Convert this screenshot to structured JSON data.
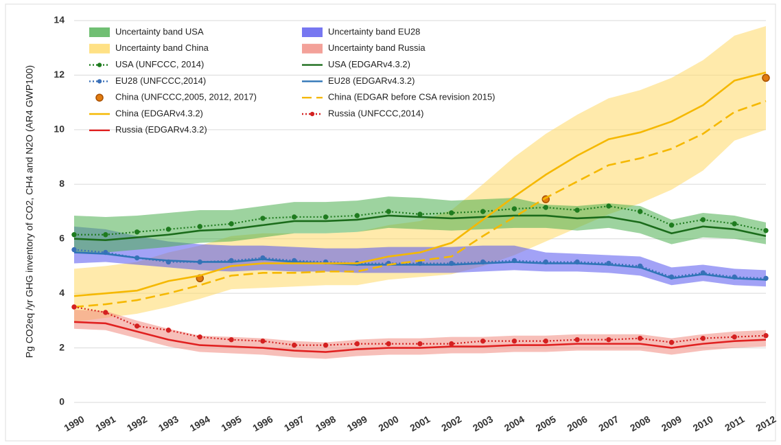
{
  "chart_data": {
    "type": "line",
    "y_label": "Pg CO2eq /yr GHG inventory of CO2, CH4 and N2O (AR4 GWP100)",
    "categories": [
      "1990",
      "1991",
      "1992",
      "1993",
      "1994",
      "1995",
      "1996",
      "1997",
      "1998",
      "1999",
      "2000",
      "2001",
      "2002",
      "2003",
      "2004",
      "2005",
      "2006",
      "2007",
      "2008",
      "2009",
      "2010",
      "2011",
      "2012"
    ],
    "ylim": [
      0,
      14
    ],
    "yticks": [
      0,
      2,
      4,
      6,
      8,
      10,
      12,
      14
    ],
    "grid": true,
    "legend": "top-left",
    "series": [
      {
        "name": "Uncertainty band USA",
        "kind": "band",
        "color": "#4caf50",
        "upper": [
          6.85,
          6.8,
          6.85,
          6.95,
          7.05,
          7.05,
          7.2,
          7.35,
          7.35,
          7.4,
          7.55,
          7.5,
          7.4,
          7.45,
          7.5,
          7.25,
          7.2,
          7.3,
          7.2,
          6.7,
          6.95,
          6.85,
          6.6
        ],
        "lower": [
          5.5,
          5.5,
          5.6,
          5.7,
          5.85,
          5.9,
          6.05,
          6.2,
          6.2,
          6.25,
          6.4,
          6.35,
          6.3,
          6.35,
          6.4,
          6.4,
          6.3,
          6.4,
          6.2,
          5.8,
          6.05,
          6.0,
          5.8
        ]
      },
      {
        "name": "Uncertainty band EU28",
        "kind": "band",
        "color": "#5555ee",
        "upper": [
          6.45,
          6.35,
          6.1,
          5.9,
          5.8,
          5.75,
          5.75,
          5.7,
          5.65,
          5.65,
          5.7,
          5.7,
          5.7,
          5.75,
          5.75,
          5.5,
          5.45,
          5.4,
          5.35,
          4.95,
          5.05,
          4.9,
          4.85
        ],
        "lower": [
          5.1,
          5.15,
          5.05,
          4.95,
          4.85,
          4.8,
          4.85,
          4.8,
          4.8,
          4.75,
          4.75,
          4.75,
          4.75,
          4.8,
          4.85,
          4.8,
          4.8,
          4.75,
          4.65,
          4.3,
          4.45,
          4.3,
          4.25
        ]
      },
      {
        "name": "Uncertainty band China",
        "kind": "band",
        "color": "#ffd966",
        "upper": [
          4.9,
          5.0,
          5.15,
          5.5,
          5.75,
          6.1,
          6.2,
          6.2,
          6.2,
          6.25,
          6.5,
          6.65,
          7.05,
          8.0,
          9.0,
          9.85,
          10.55,
          11.15,
          11.45,
          11.9,
          12.55,
          13.45,
          13.8
        ],
        "lower": [
          2.95,
          3.1,
          3.25,
          3.5,
          3.8,
          4.15,
          4.2,
          4.25,
          4.3,
          4.3,
          4.5,
          4.6,
          4.7,
          5.0,
          5.4,
          5.9,
          6.4,
          6.9,
          7.3,
          7.8,
          8.5,
          9.6,
          10.0
        ]
      },
      {
        "name": "Uncertainty band Russia",
        "kind": "band",
        "color": "#f08a80",
        "upper": [
          3.4,
          3.35,
          3.0,
          2.7,
          2.45,
          2.4,
          2.35,
          2.25,
          2.2,
          2.3,
          2.35,
          2.35,
          2.4,
          2.4,
          2.45,
          2.45,
          2.5,
          2.5,
          2.5,
          2.35,
          2.5,
          2.6,
          2.65
        ],
        "lower": [
          2.7,
          2.65,
          2.35,
          2.05,
          1.85,
          1.8,
          1.75,
          1.65,
          1.6,
          1.7,
          1.75,
          1.75,
          1.8,
          1.8,
          1.85,
          1.85,
          1.9,
          1.9,
          1.9,
          1.75,
          1.9,
          2.0,
          2.05
        ]
      },
      {
        "name": "USA (UNFCCC, 2014)",
        "kind": "line",
        "style": "dotted",
        "marker": true,
        "color": "#1e7b1e",
        "values": [
          6.15,
          6.15,
          6.25,
          6.35,
          6.45,
          6.55,
          6.75,
          6.8,
          6.8,
          6.85,
          7.0,
          6.9,
          6.95,
          7.0,
          7.1,
          7.15,
          7.05,
          7.2,
          7.0,
          6.5,
          6.7,
          6.55,
          6.3
        ]
      },
      {
        "name": "USA (EDGARv4.3.2)",
        "kind": "line",
        "style": "solid",
        "marker": false,
        "color": "#1a6b1a",
        "values": [
          6.0,
          5.95,
          6.05,
          6.15,
          6.3,
          6.35,
          6.5,
          6.65,
          6.65,
          6.7,
          6.85,
          6.8,
          6.75,
          6.8,
          6.85,
          6.85,
          6.75,
          6.8,
          6.6,
          6.2,
          6.45,
          6.35,
          6.1
        ]
      },
      {
        "name": "EU28 (UNFCCC,2014)",
        "kind": "line",
        "style": "dotted",
        "marker": true,
        "color": "#3a70b8",
        "values": [
          5.6,
          5.5,
          5.3,
          5.15,
          5.15,
          5.2,
          5.3,
          5.2,
          5.15,
          5.1,
          5.1,
          5.1,
          5.1,
          5.15,
          5.2,
          5.15,
          5.15,
          5.1,
          5.0,
          4.6,
          4.75,
          4.6,
          4.55
        ]
      },
      {
        "name": "EU28 (EDGARv4.3.2)",
        "kind": "line",
        "style": "solid",
        "marker": false,
        "color": "#2e75b6",
        "values": [
          5.5,
          5.45,
          5.3,
          5.2,
          5.15,
          5.15,
          5.25,
          5.15,
          5.1,
          5.05,
          5.05,
          5.05,
          5.05,
          5.1,
          5.15,
          5.1,
          5.1,
          5.05,
          4.95,
          4.55,
          4.7,
          4.55,
          4.5
        ]
      },
      {
        "name": "China (UNFCCC,2005, 2012, 2017)",
        "kind": "points",
        "color": "#e07b10",
        "values": [
          null,
          null,
          null,
          null,
          4.55,
          null,
          null,
          null,
          null,
          null,
          null,
          null,
          null,
          null,
          null,
          7.45,
          null,
          null,
          null,
          null,
          null,
          null,
          11.9
        ]
      },
      {
        "name": "China (EDGAR before CSA revision 2015)",
        "kind": "line",
        "style": "dashed",
        "marker": false,
        "color": "#f5b800",
        "values": [
          3.5,
          3.6,
          3.75,
          4.0,
          4.3,
          4.65,
          4.75,
          4.75,
          4.8,
          4.8,
          5.05,
          5.2,
          5.35,
          6.1,
          6.8,
          7.5,
          8.1,
          8.7,
          8.95,
          9.3,
          9.85,
          10.65,
          11.05
        ]
      },
      {
        "name": "China (EDGARv4.3.2)",
        "kind": "line",
        "style": "solid",
        "marker": false,
        "color": "#f5b800",
        "values": [
          3.9,
          4.0,
          4.1,
          4.45,
          4.65,
          5.0,
          5.1,
          5.1,
          5.1,
          5.1,
          5.35,
          5.5,
          5.85,
          6.7,
          7.55,
          8.35,
          9.05,
          9.65,
          9.9,
          10.3,
          10.9,
          11.8,
          12.1
        ]
      },
      {
        "name": "Russia (UNFCCC,2014)",
        "kind": "line",
        "style": "dotted",
        "marker": true,
        "color": "#d42020",
        "values": [
          3.5,
          3.3,
          2.8,
          2.65,
          2.4,
          2.3,
          2.25,
          2.1,
          2.1,
          2.15,
          2.15,
          2.15,
          2.15,
          2.25,
          2.25,
          2.25,
          2.3,
          2.3,
          2.35,
          2.2,
          2.35,
          2.4,
          2.45
        ]
      },
      {
        "name": "Russia (EDGARv4.3.2)",
        "kind": "line",
        "style": "solid",
        "marker": false,
        "color": "#e02020",
        "values": [
          2.95,
          2.9,
          2.6,
          2.3,
          2.1,
          2.05,
          2.0,
          1.9,
          1.85,
          1.95,
          2.0,
          2.0,
          2.05,
          2.05,
          2.1,
          2.1,
          2.15,
          2.15,
          2.15,
          2.0,
          2.15,
          2.25,
          2.3
        ]
      }
    ]
  }
}
